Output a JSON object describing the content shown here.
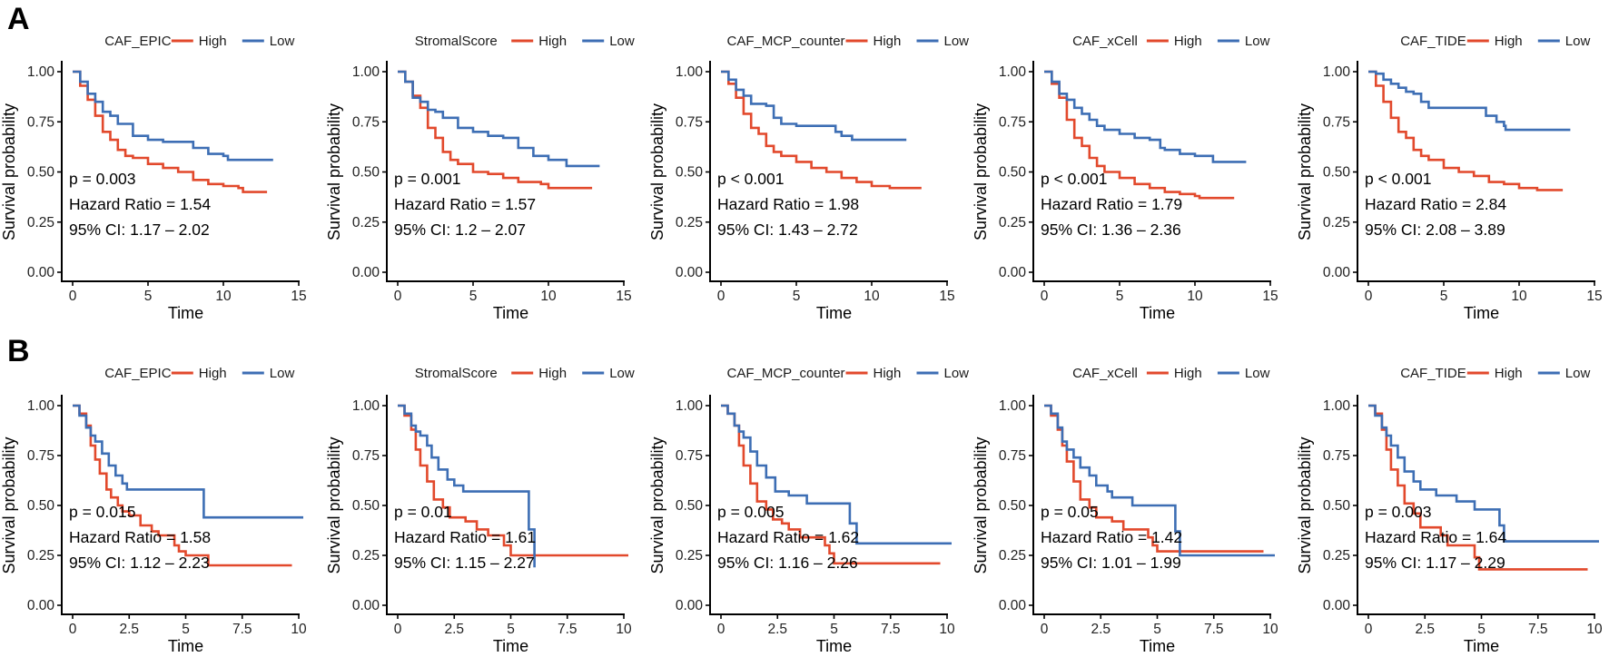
{
  "figure": {
    "colors": {
      "High": "#E2492C",
      "Low": "#3D6EB4"
    },
    "row_labels": [
      "A",
      "B"
    ]
  },
  "chart_data": [
    {
      "type": "line",
      "row": "A",
      "legend_title": "CAF_EPIC",
      "legend": [
        "High",
        "Low"
      ],
      "legend_position": "top",
      "xlabel": "Time",
      "ylabel": "Survival probability",
      "xlim": [
        0,
        15
      ],
      "xticks": [
        "0",
        "5",
        "10",
        "15"
      ],
      "ylim": [
        0,
        1
      ],
      "yticks": [
        "0.00",
        "0.25",
        "0.50",
        "0.75",
        "1.00"
      ],
      "annotations": [
        "p = 0.003",
        "Hazard Ratio = 1.54",
        "95% CI: 1.17 – 2.02"
      ],
      "series": [
        {
          "name": "High",
          "x": [
            0,
            0.5,
            1,
            1.5,
            2,
            2.5,
            3,
            3.5,
            4,
            5,
            6,
            7,
            8,
            9,
            10,
            11,
            11.3,
            12.9
          ],
          "y": [
            1.0,
            0.93,
            0.86,
            0.78,
            0.7,
            0.66,
            0.61,
            0.58,
            0.57,
            0.54,
            0.52,
            0.5,
            0.46,
            0.44,
            0.43,
            0.42,
            0.4,
            0.4
          ]
        },
        {
          "name": "Low",
          "x": [
            0,
            0.5,
            1,
            1.5,
            2,
            2.5,
            3,
            4,
            5,
            6,
            7,
            7.5,
            8,
            9,
            10,
            10.3,
            13.3
          ],
          "y": [
            1.0,
            0.95,
            0.89,
            0.85,
            0.8,
            0.78,
            0.74,
            0.68,
            0.66,
            0.65,
            0.65,
            0.65,
            0.62,
            0.59,
            0.58,
            0.56,
            0.56
          ]
        }
      ]
    },
    {
      "type": "line",
      "row": "A",
      "legend_title": "StromalScore",
      "legend": [
        "High",
        "Low"
      ],
      "legend_position": "top",
      "xlabel": "Time",
      "ylabel": "Survival probability",
      "xlim": [
        0,
        15
      ],
      "xticks": [
        "0",
        "5",
        "10",
        "15"
      ],
      "ylim": [
        0,
        1
      ],
      "yticks": [
        "0.00",
        "0.25",
        "0.50",
        "0.75",
        "1.00"
      ],
      "annotations": [
        "p = 0.001",
        "Hazard Ratio = 1.57",
        "95% CI: 1.2 – 2.07"
      ],
      "series": [
        {
          "name": "High",
          "x": [
            0,
            0.5,
            1,
            1.5,
            2,
            2.5,
            3,
            3.5,
            4,
            5,
            6,
            7,
            8,
            9,
            9.5,
            10,
            12.9
          ],
          "y": [
            1.0,
            0.95,
            0.88,
            0.82,
            0.72,
            0.67,
            0.6,
            0.56,
            0.54,
            0.5,
            0.49,
            0.47,
            0.45,
            0.45,
            0.44,
            0.42,
            0.42
          ]
        },
        {
          "name": "Low",
          "x": [
            0,
            0.5,
            1,
            1.5,
            2,
            2.5,
            3,
            4,
            5,
            6,
            7,
            7.5,
            8,
            9,
            10,
            11.2,
            13.4
          ],
          "y": [
            1.0,
            0.95,
            0.87,
            0.85,
            0.81,
            0.8,
            0.77,
            0.72,
            0.7,
            0.68,
            0.67,
            0.67,
            0.62,
            0.58,
            0.56,
            0.53,
            0.53
          ]
        }
      ]
    },
    {
      "type": "line",
      "row": "A",
      "legend_title": "CAF_MCP_counter",
      "legend": [
        "High",
        "Low"
      ],
      "legend_position": "top",
      "xlabel": "Time",
      "ylabel": "Survival probability",
      "xlim": [
        0,
        15
      ],
      "xticks": [
        "0",
        "5",
        "10",
        "15"
      ],
      "ylim": [
        0,
        1
      ],
      "yticks": [
        "0.00",
        "0.25",
        "0.50",
        "0.75",
        "1.00"
      ],
      "annotations": [
        "p < 0.001",
        "Hazard Ratio = 1.98",
        "95% CI: 1.43 – 2.72"
      ],
      "series": [
        {
          "name": "High",
          "x": [
            0,
            0.5,
            1,
            1.5,
            2,
            2.5,
            3,
            3.5,
            4,
            5,
            6,
            7,
            8,
            9,
            10,
            11.2,
            13.3
          ],
          "y": [
            1.0,
            0.94,
            0.87,
            0.79,
            0.72,
            0.69,
            0.63,
            0.6,
            0.58,
            0.55,
            0.52,
            0.5,
            0.47,
            0.45,
            0.43,
            0.42,
            0.42
          ]
        },
        {
          "name": "Low",
          "x": [
            0,
            0.5,
            1,
            1.5,
            2,
            3,
            3.5,
            4,
            5,
            6,
            7,
            7.6,
            8,
            8.7,
            12.3
          ],
          "y": [
            1.0,
            0.96,
            0.91,
            0.88,
            0.84,
            0.83,
            0.77,
            0.74,
            0.73,
            0.73,
            0.73,
            0.7,
            0.68,
            0.66,
            0.66
          ]
        }
      ]
    },
    {
      "type": "line",
      "row": "A",
      "legend_title": "CAF_xCell",
      "legend": [
        "High",
        "Low"
      ],
      "legend_position": "top",
      "xlabel": "Time",
      "ylabel": "Survival probability",
      "xlim": [
        0,
        15
      ],
      "xticks": [
        "0",
        "5",
        "10",
        "15"
      ],
      "ylim": [
        0,
        1
      ],
      "yticks": [
        "0.00",
        "0.25",
        "0.50",
        "0.75",
        "1.00"
      ],
      "annotations": [
        "p < 0.001",
        "Hazard Ratio = 1.79",
        "95% CI: 1.36 – 2.36"
      ],
      "series": [
        {
          "name": "High",
          "x": [
            0,
            0.5,
            1,
            1.5,
            2,
            2.5,
            3,
            3.5,
            4,
            5,
            6,
            7,
            8,
            9,
            10,
            10.3,
            12.6
          ],
          "y": [
            1.0,
            0.94,
            0.87,
            0.76,
            0.67,
            0.63,
            0.57,
            0.53,
            0.5,
            0.47,
            0.44,
            0.42,
            0.4,
            0.39,
            0.38,
            0.37,
            0.37
          ]
        },
        {
          "name": "Low",
          "x": [
            0,
            0.5,
            1,
            1.5,
            2,
            2.5,
            3,
            3.5,
            4,
            5,
            6,
            7,
            7.7,
            8,
            9,
            10,
            11.2,
            13.4
          ],
          "y": [
            1.0,
            0.95,
            0.89,
            0.86,
            0.82,
            0.79,
            0.76,
            0.73,
            0.71,
            0.69,
            0.67,
            0.66,
            0.62,
            0.61,
            0.59,
            0.58,
            0.55,
            0.55
          ]
        }
      ]
    },
    {
      "type": "line",
      "row": "A",
      "legend_title": "CAF_TIDE",
      "legend": [
        "High",
        "Low"
      ],
      "legend_position": "top",
      "xlabel": "Time",
      "ylabel": "Survival probability",
      "xlim": [
        0,
        15
      ],
      "xticks": [
        "0",
        "5",
        "10",
        "15"
      ],
      "ylim": [
        0,
        1
      ],
      "yticks": [
        "0.00",
        "0.25",
        "0.50",
        "0.75",
        "1.00"
      ],
      "annotations": [
        "p < 0.001",
        "Hazard Ratio = 2.84",
        "95% CI: 2.08 – 3.89"
      ],
      "series": [
        {
          "name": "High",
          "x": [
            0,
            0.5,
            1,
            1.5,
            2,
            2.5,
            3,
            3.5,
            4,
            5,
            6,
            7,
            8,
            9,
            10,
            11.2,
            12.9
          ],
          "y": [
            1.0,
            0.93,
            0.85,
            0.77,
            0.7,
            0.67,
            0.61,
            0.58,
            0.56,
            0.52,
            0.5,
            0.48,
            0.45,
            0.44,
            0.42,
            0.41,
            0.41
          ]
        },
        {
          "name": "Low",
          "x": [
            0,
            0.5,
            1,
            1.5,
            2,
            2.5,
            3,
            3.5,
            4,
            5,
            6,
            7,
            7.8,
            8.5,
            9,
            9.1,
            13.4
          ],
          "y": [
            1.0,
            0.99,
            0.96,
            0.94,
            0.92,
            0.9,
            0.89,
            0.85,
            0.82,
            0.82,
            0.82,
            0.82,
            0.78,
            0.75,
            0.73,
            0.71,
            0.71
          ]
        }
      ]
    },
    {
      "type": "line",
      "row": "B",
      "legend_title": "CAF_EPIC",
      "legend": [
        "High",
        "Low"
      ],
      "legend_position": "top",
      "xlabel": "Time",
      "ylabel": "Survival probability",
      "xlim": [
        0,
        10
      ],
      "xticks": [
        "0",
        "2.5",
        "5",
        "7.5",
        "10"
      ],
      "ylim": [
        0,
        1
      ],
      "yticks": [
        "0.00",
        "0.25",
        "0.50",
        "0.75",
        "1.00"
      ],
      "annotations": [
        "p = 0.015",
        "Hazard Ratio = 1.58",
        "95% CI: 1.12 – 2.23"
      ],
      "series": [
        {
          "name": "High",
          "x": [
            0,
            0.3,
            0.6,
            0.8,
            1.0,
            1.2,
            1.5,
            1.7,
            2.0,
            2.2,
            2.5,
            3.0,
            3.5,
            3.8,
            4.5,
            4.7,
            5.0,
            6.0,
            9.7
          ],
          "y": [
            1.0,
            0.96,
            0.9,
            0.8,
            0.73,
            0.66,
            0.58,
            0.54,
            0.5,
            0.47,
            0.45,
            0.4,
            0.37,
            0.35,
            0.3,
            0.27,
            0.25,
            0.2,
            0.2
          ]
        },
        {
          "name": "Low",
          "x": [
            0,
            0.3,
            0.6,
            0.8,
            1.0,
            1.3,
            1.6,
            1.9,
            2.2,
            2.4,
            5.8,
            10.2
          ],
          "y": [
            1.0,
            0.95,
            0.89,
            0.85,
            0.82,
            0.76,
            0.7,
            0.65,
            0.61,
            0.58,
            0.44,
            0.44
          ]
        }
      ]
    },
    {
      "type": "line",
      "row": "B",
      "legend_title": "StromalScore",
      "legend": [
        "High",
        "Low"
      ],
      "legend_position": "top",
      "xlabel": "Time",
      "ylabel": "Survival probability",
      "xlim": [
        0,
        10
      ],
      "xticks": [
        "0",
        "2.5",
        "5",
        "7.5",
        "10"
      ],
      "ylim": [
        0,
        1
      ],
      "yticks": [
        "0.00",
        "0.25",
        "0.50",
        "0.75",
        "1.00"
      ],
      "annotations": [
        "p = 0.01",
        "Hazard Ratio = 1.61",
        "95% CI: 1.15 – 2.27"
      ],
      "series": [
        {
          "name": "High",
          "x": [
            0,
            0.3,
            0.6,
            0.8,
            1.0,
            1.3,
            1.6,
            2.0,
            2.3,
            3.0,
            3.5,
            4.0,
            4.7,
            5.0,
            10.2
          ],
          "y": [
            1.0,
            0.95,
            0.88,
            0.78,
            0.7,
            0.62,
            0.53,
            0.49,
            0.44,
            0.42,
            0.38,
            0.35,
            0.3,
            0.25,
            0.25
          ]
        },
        {
          "name": "Low",
          "x": [
            0,
            0.3,
            0.6,
            0.8,
            1.0,
            1.3,
            1.5,
            1.8,
            2.2,
            2.5,
            2.9,
            5.8,
            6.0,
            6.05
          ],
          "y": [
            1.0,
            0.96,
            0.9,
            0.87,
            0.85,
            0.8,
            0.74,
            0.68,
            0.63,
            0.6,
            0.57,
            0.38,
            0.38,
            0.19
          ]
        }
      ]
    },
    {
      "type": "line",
      "row": "B",
      "legend_title": "CAF_MCP_counter",
      "legend": [
        "High",
        "Low"
      ],
      "legend_position": "top",
      "xlabel": "Time",
      "ylabel": "Survival probability",
      "xlim": [
        0,
        10
      ],
      "xticks": [
        "0",
        "2.5",
        "5",
        "7.5",
        "10"
      ],
      "ylim": [
        0,
        1
      ],
      "yticks": [
        "0.00",
        "0.25",
        "0.50",
        "0.75",
        "1.00"
      ],
      "annotations": [
        "p = 0.005",
        "Hazard Ratio = 1.62",
        "95% CI: 1.16 – 2.26"
      ],
      "series": [
        {
          "name": "High",
          "x": [
            0,
            0.3,
            0.6,
            0.8,
            1.0,
            1.3,
            1.6,
            2.0,
            2.3,
            2.7,
            3.0,
            3.5,
            4.6,
            4.8,
            5.0,
            9.7
          ],
          "y": [
            1.0,
            0.96,
            0.9,
            0.8,
            0.7,
            0.61,
            0.52,
            0.48,
            0.43,
            0.41,
            0.38,
            0.34,
            0.3,
            0.26,
            0.21,
            0.21
          ]
        },
        {
          "name": "Low",
          "x": [
            0,
            0.3,
            0.6,
            0.8,
            1.0,
            1.3,
            1.6,
            2.0,
            2.4,
            3.0,
            3.8,
            5.7,
            6.0,
            10.2
          ],
          "y": [
            1.0,
            0.96,
            0.9,
            0.87,
            0.84,
            0.77,
            0.7,
            0.64,
            0.57,
            0.55,
            0.51,
            0.41,
            0.31,
            0.31
          ]
        }
      ]
    },
    {
      "type": "line",
      "row": "B",
      "legend_title": "CAF_xCell",
      "legend": [
        "High",
        "Low"
      ],
      "legend_position": "top",
      "xlabel": "Time",
      "ylabel": "Survival probability",
      "xlim": [
        0,
        10
      ],
      "xticks": [
        "0",
        "2.5",
        "5",
        "7.5",
        "10"
      ],
      "ylim": [
        0,
        1
      ],
      "yticks": [
        "0.00",
        "0.25",
        "0.50",
        "0.75",
        "1.00"
      ],
      "annotations": [
        "p = 0.05",
        "Hazard Ratio = 1.42",
        "95% CI: 1.01 – 1.99"
      ],
      "series": [
        {
          "name": "High",
          "x": [
            0,
            0.3,
            0.6,
            0.8,
            1.0,
            1.3,
            1.6,
            2.0,
            2.3,
            3.0,
            3.5,
            4.6,
            4.8,
            5.0,
            9.7
          ],
          "y": [
            1.0,
            0.95,
            0.88,
            0.8,
            0.72,
            0.62,
            0.53,
            0.49,
            0.44,
            0.42,
            0.38,
            0.34,
            0.3,
            0.27,
            0.27
          ]
        },
        {
          "name": "Low",
          "x": [
            0,
            0.3,
            0.6,
            0.8,
            1.0,
            1.3,
            1.6,
            2.0,
            2.3,
            2.8,
            3.0,
            3.9,
            5.8,
            6.0,
            10.2
          ],
          "y": [
            1.0,
            0.96,
            0.89,
            0.82,
            0.78,
            0.74,
            0.69,
            0.65,
            0.6,
            0.57,
            0.54,
            0.5,
            0.37,
            0.25,
            0.25
          ]
        }
      ]
    },
    {
      "type": "line",
      "row": "B",
      "legend_title": "CAF_TIDE",
      "legend": [
        "High",
        "Low"
      ],
      "legend_position": "top",
      "xlabel": "Time",
      "ylabel": "Survival probability",
      "xlim": [
        0,
        10
      ],
      "xticks": [
        "0",
        "2.5",
        "5",
        "7.5",
        "10"
      ],
      "ylim": [
        0,
        1
      ],
      "yticks": [
        "0.00",
        "0.25",
        "0.50",
        "0.75",
        "1.00"
      ],
      "annotations": [
        "p = 0.003",
        "Hazard Ratio = 1.64",
        "95% CI: 1.17 – 2.29"
      ],
      "series": [
        {
          "name": "High",
          "x": [
            0,
            0.3,
            0.6,
            0.8,
            1.0,
            1.3,
            1.6,
            2.0,
            2.3,
            3.2,
            3.5,
            4.7,
            4.9,
            9.7
          ],
          "y": [
            1.0,
            0.96,
            0.88,
            0.78,
            0.68,
            0.6,
            0.51,
            0.46,
            0.39,
            0.35,
            0.3,
            0.24,
            0.18,
            0.18
          ]
        },
        {
          "name": "Low",
          "x": [
            0,
            0.3,
            0.6,
            0.8,
            1.0,
            1.3,
            1.6,
            2.0,
            2.3,
            3.0,
            3.9,
            4.7,
            5.8,
            6.0,
            10.2
          ],
          "y": [
            1.0,
            0.95,
            0.89,
            0.85,
            0.8,
            0.74,
            0.67,
            0.62,
            0.58,
            0.55,
            0.52,
            0.48,
            0.4,
            0.32,
            0.32
          ]
        }
      ]
    }
  ]
}
